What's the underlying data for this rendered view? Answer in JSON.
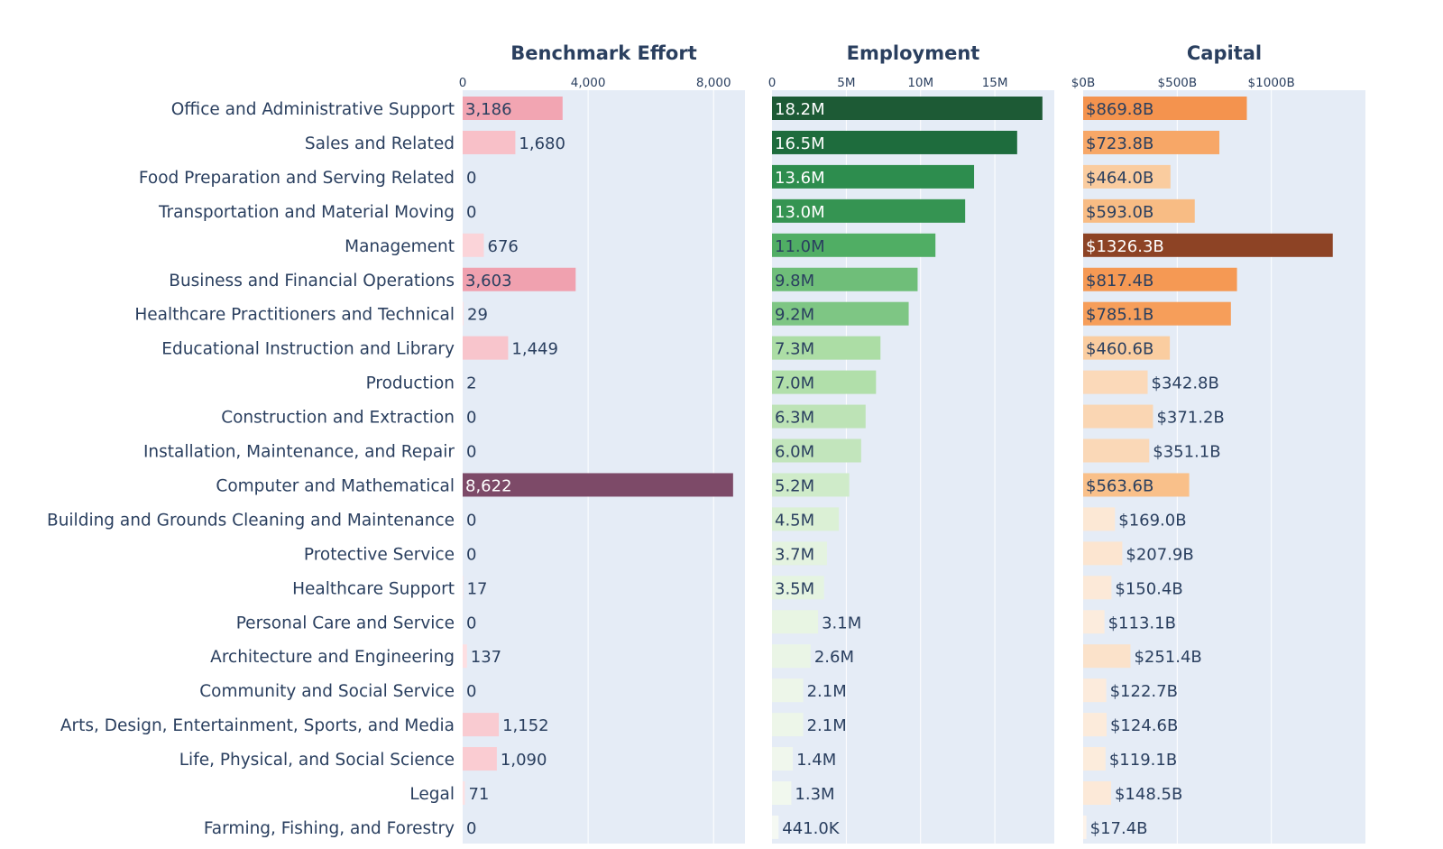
{
  "chart_data": {
    "type": "bar",
    "orientation": "horizontal",
    "categories": [
      "Office and Administrative Support",
      "Sales and Related",
      "Food Preparation and Serving Related",
      "Transportation and Material Moving",
      "Management",
      "Business and Financial Operations",
      "Healthcare Practitioners and Technical",
      "Educational Instruction and Library",
      "Production",
      "Construction and Extraction",
      "Installation, Maintenance, and Repair",
      "Computer and Mathematical",
      "Building and Grounds Cleaning and Maintenance",
      "Protective Service",
      "Healthcare Support",
      "Personal Care and Service",
      "Architecture and Engineering",
      "Community and Social Service",
      "Arts, Design, Entertainment, Sports, and Media",
      "Life, Physical, and Social Science",
      "Legal",
      "Farming, Fishing, and Forestry"
    ],
    "panels": [
      {
        "title": "Benchmark Effort",
        "xlim": [
          0,
          9000
        ],
        "ticks": [
          0,
          4000,
          8000
        ],
        "tick_labels": [
          "0",
          "4,000",
          "8,000"
        ],
        "values": [
          3186,
          1680,
          0,
          0,
          676,
          3603,
          29,
          1449,
          2,
          0,
          0,
          8622,
          0,
          0,
          17,
          0,
          137,
          0,
          1152,
          1090,
          71,
          0
        ],
        "labels": [
          "3,186",
          "1,680",
          "0",
          "0",
          "676",
          "3,603",
          "29",
          "1,449",
          "2",
          "0",
          "0",
          "8,622",
          "0",
          "0",
          "17",
          "0",
          "137",
          "0",
          "1,152",
          "1,090",
          "71",
          "0"
        ],
        "colorscale": [
          "#fde2e4",
          "#f4a8b4",
          "#e38da0",
          "#7d4a68"
        ]
      },
      {
        "title": "Employment",
        "xlim": [
          0,
          19000000
        ],
        "ticks": [
          0,
          5000000,
          10000000,
          15000000
        ],
        "tick_labels": [
          "0",
          "5M",
          "10M",
          "15M"
        ],
        "values": [
          18200000,
          16500000,
          13600000,
          13000000,
          11000000,
          9800000,
          9200000,
          7300000,
          7000000,
          6300000,
          6000000,
          5200000,
          4500000,
          3700000,
          3500000,
          3100000,
          2600000,
          2100000,
          2100000,
          1400000,
          1300000,
          441000
        ],
        "labels": [
          "18.2M",
          "16.5M",
          "13.6M",
          "13.0M",
          "11.0M",
          "9.8M",
          "9.2M",
          "7.3M",
          "7.0M",
          "6.3M",
          "6.0M",
          "5.2M",
          "4.5M",
          "3.7M",
          "3.5M",
          "3.1M",
          "2.6M",
          "2.1M",
          "2.1M",
          "1.4M",
          "1.3M",
          "441.0K"
        ],
        "colorscale": [
          "#f5f9f3",
          "#e3f3de",
          "#a8dba1",
          "#4ead62",
          "#1f7f45",
          "#1d5a35"
        ]
      },
      {
        "title": "Capital",
        "xlim": [
          0,
          1500
        ],
        "ticks": [
          0,
          500,
          1000
        ],
        "tick_labels": [
          "$0B",
          "$500B",
          "$1000B"
        ],
        "values": [
          869.8,
          723.8,
          464.0,
          593.0,
          1326.3,
          817.4,
          785.1,
          460.6,
          342.8,
          371.2,
          351.1,
          563.6,
          169.0,
          207.9,
          150.4,
          113.1,
          251.4,
          122.7,
          124.6,
          119.1,
          148.5,
          17.4
        ],
        "labels": [
          "$869.8B",
          "$723.8B",
          "$464.0B",
          "$593.0B",
          "$1326.3B",
          "$817.4B",
          "$785.1B",
          "$460.6B",
          "$342.8B",
          "$371.2B",
          "$351.1B",
          "$563.6B",
          "$169.0B",
          "$207.9B",
          "$150.4B",
          "$113.1B",
          "$251.4B",
          "$122.7B",
          "$124.6B",
          "$119.1B",
          "$148.5B",
          "$17.4B"
        ],
        "colorscale": [
          "#fdf3ea",
          "#fbe0c6",
          "#f9c48f",
          "#f69b56",
          "#ed7a36",
          "#8d4325"
        ]
      }
    ]
  }
}
